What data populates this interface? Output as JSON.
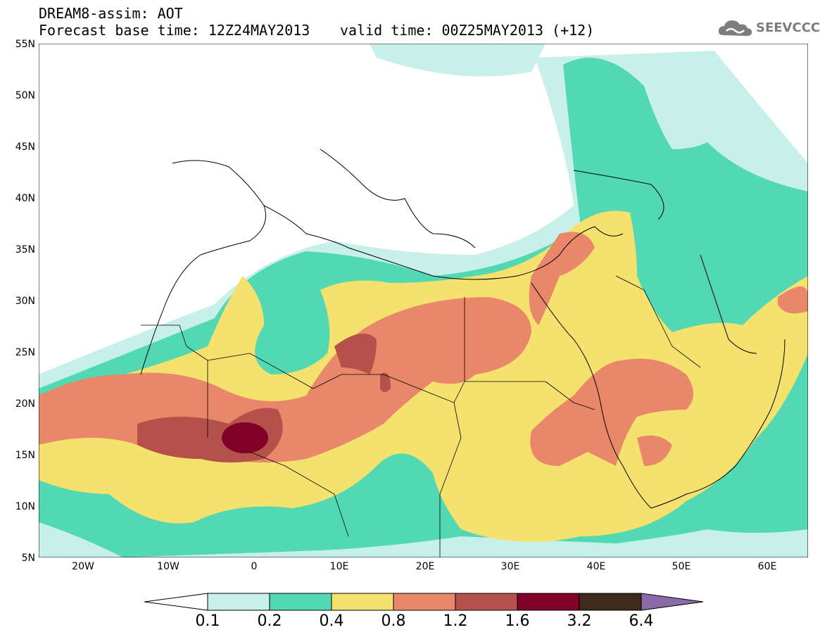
{
  "header": {
    "title_line1": "DREAM8-assim: AOT",
    "title_line2": "Forecast base time: 12Z24MAY2013",
    "valid_time": "valid time: 00Z25MAY2013 (+12)",
    "logo_text": "SEEVCCC"
  },
  "map": {
    "lat_labels": [
      "55N",
      "50N",
      "45N",
      "40N",
      "35N",
      "30N",
      "25N",
      "20N",
      "15N",
      "10N",
      "5N"
    ],
    "lon_labels": [
      "20W",
      "10W",
      "0",
      "10E",
      "20E",
      "30E",
      "40E",
      "50E",
      "60E"
    ],
    "extent": {
      "lon_min": -25,
      "lon_max": 65,
      "lat_min": 5,
      "lat_max": 55
    }
  },
  "legend": {
    "values": [
      "0.1",
      "0.2",
      "0.4",
      "0.8",
      "1.2",
      "1.6",
      "3.2",
      "6.4"
    ],
    "colors": [
      "#ffffff",
      "#c8f0ea",
      "#52d9b3",
      "#f5e26e",
      "#e8876a",
      "#b3514a",
      "#800029",
      "#3d2a1c",
      "#8b6aa8"
    ]
  }
}
